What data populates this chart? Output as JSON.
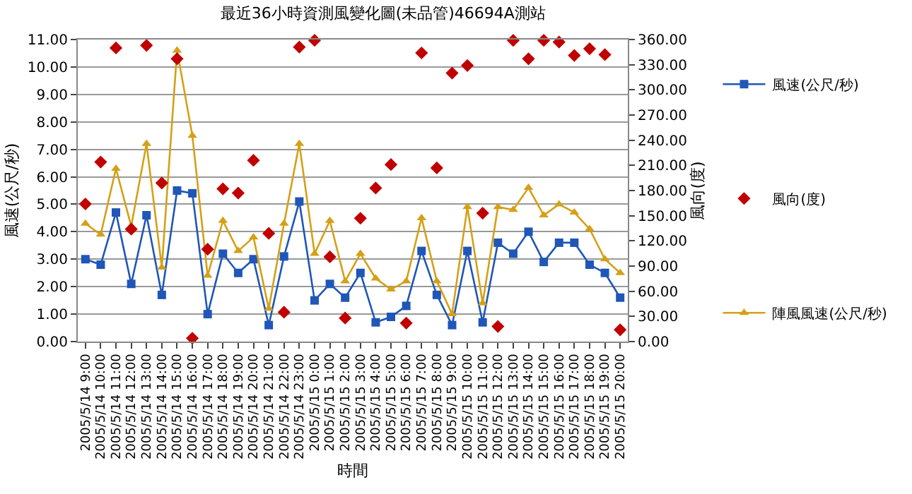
{
  "chart_data": {
    "type": "line",
    "title": "最近36小時資測風變化圖(未品管)46694A測站",
    "xlabel": "時間",
    "ylabel": "風速(公尺/秒)",
    "y2label": "風向(度)",
    "categories": [
      "2005/5/14 9:00",
      "2005/5/14 10:00",
      "2005/5/14 11:00",
      "2005/5/14 12:00",
      "2005/5/14 13:00",
      "2005/5/14 14:00",
      "2005/5/14 15:00",
      "2005/5/14 16:00",
      "2005/5/14 17:00",
      "2005/5/14 18:00",
      "2005/5/14 19:00",
      "2005/5/14 20:00",
      "2005/5/14 21:00",
      "2005/5/14 22:00",
      "2005/5/14 23:00",
      "2005/5/15 0:00",
      "2005/5/15 1:00",
      "2005/5/15 2:00",
      "2005/5/15 3:00",
      "2005/5/15 4:00",
      "2005/5/15 5:00",
      "2005/5/15 6:00",
      "2005/5/15 7:00",
      "2005/5/15 8:00",
      "2005/5/15 9:00",
      "2005/5/15 10:00",
      "2005/5/15 11:00",
      "2005/5/15 12:00",
      "2005/5/15 13:00",
      "2005/5/15 14:00",
      "2005/5/15 15:00",
      "2005/5/15 16:00",
      "2005/5/15 17:00",
      "2005/5/15 18:00",
      "2005/5/15 19:00",
      "2005/5/15 20:00"
    ],
    "series": [
      {
        "name": "風速(公尺/秒)",
        "marker": "square",
        "color": "#1f56b8",
        "values": [
          3.0,
          2.8,
          4.7,
          2.1,
          4.6,
          1.7,
          5.5,
          5.4,
          1.0,
          3.2,
          2.5,
          3.0,
          0.6,
          3.1,
          5.1,
          1.5,
          2.1,
          1.6,
          2.5,
          0.7,
          0.9,
          1.3,
          3.3,
          1.7,
          0.6,
          3.3,
          0.7,
          3.6,
          3.2,
          4.0,
          2.9,
          3.6,
          3.6,
          2.8,
          2.5,
          1.6
        ]
      },
      {
        "name": "風向(度)",
        "type": "scatter",
        "marker": "diamond",
        "color": "#c00000",
        "axis": "y2",
        "values": [
          164,
          214,
          350,
          134,
          353,
          189,
          337,
          4,
          110,
          182,
          177,
          216,
          129,
          35,
          351,
          359,
          101,
          28,
          147,
          183,
          211,
          22,
          344,
          207,
          320,
          329,
          153,
          18,
          359,
          337,
          359,
          357,
          341,
          349,
          342,
          14
        ]
      },
      {
        "name": "陣風風速(公尺/秒)",
        "marker": "triangle",
        "color": "#d4a017",
        "values": [
          4.3,
          3.9,
          6.3,
          4.2,
          7.2,
          2.7,
          10.6,
          7.5,
          2.4,
          4.4,
          3.3,
          3.8,
          1.2,
          4.3,
          7.2,
          3.2,
          4.4,
          2.2,
          3.2,
          2.3,
          1.9,
          2.2,
          4.5,
          2.2,
          1.0,
          4.9,
          1.4,
          4.9,
          4.8,
          5.6,
          4.6,
          5.0,
          4.7,
          4.1,
          3.0,
          2.5
        ]
      }
    ],
    "ylim": [
      0,
      11
    ],
    "yticks": [
      {
        "value": 0,
        "label": "0.00"
      },
      {
        "value": 1,
        "label": "1.00"
      },
      {
        "value": 2,
        "label": "2.00"
      },
      {
        "value": 3,
        "label": "3.00"
      },
      {
        "value": 4,
        "label": "4.00"
      },
      {
        "value": 5,
        "label": "5.00"
      },
      {
        "value": 6,
        "label": "6.00"
      },
      {
        "value": 7,
        "label": "7.00"
      },
      {
        "value": 8,
        "label": "8.00"
      },
      {
        "value": 9,
        "label": "9.00"
      },
      {
        "value": 10,
        "label": "10.00"
      },
      {
        "value": 11,
        "label": "11.00"
      }
    ],
    "y2lim": [
      0,
      360
    ],
    "y2ticks": [
      {
        "value": 0,
        "label": "0.00"
      },
      {
        "value": 30,
        "label": "30.00"
      },
      {
        "value": 60,
        "label": "60.00"
      },
      {
        "value": 90,
        "label": "90.00"
      },
      {
        "value": 120,
        "label": "120.00"
      },
      {
        "value": 150,
        "label": "150.00"
      },
      {
        "value": 180,
        "label": "180.00"
      },
      {
        "value": 210,
        "label": "210.00"
      },
      {
        "value": 240,
        "label": "240.00"
      },
      {
        "value": 270,
        "label": "270.00"
      },
      {
        "value": 300,
        "label": "300.00"
      },
      {
        "value": 330,
        "label": "330.00"
      },
      {
        "value": 360,
        "label": "360.00"
      }
    ],
    "grid": "y",
    "legend": "right"
  }
}
